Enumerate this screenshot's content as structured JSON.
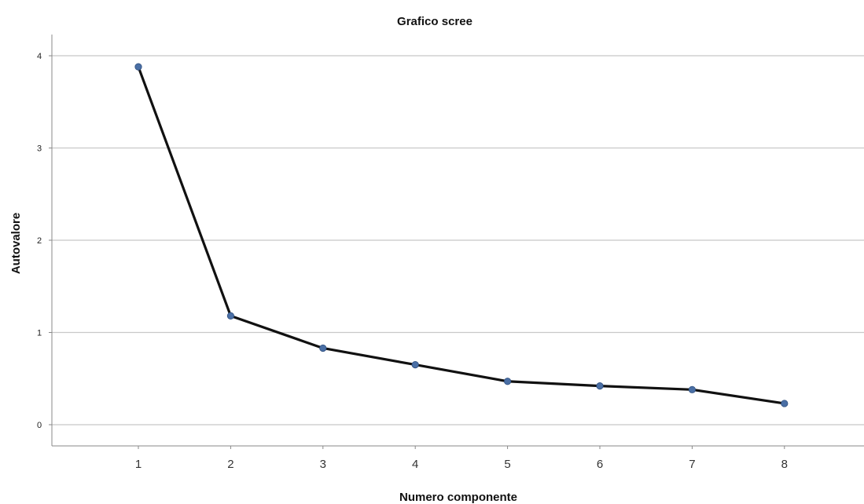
{
  "chart_data": {
    "type": "line",
    "title": "Grafico scree",
    "xlabel": "Numero componente",
    "ylabel": "Autovalore",
    "categories": [
      "1",
      "2",
      "3",
      "4",
      "5",
      "6",
      "7",
      "8"
    ],
    "series": [
      {
        "values": [
          3.88,
          1.18,
          0.83,
          0.65,
          0.47,
          0.42,
          0.38,
          0.23
        ],
        "line_color": "#111111",
        "marker_color": "#4a6fa5"
      }
    ],
    "yticks": [
      0,
      1,
      2,
      3,
      4
    ],
    "ytick_labels": [
      "0",
      "1",
      "2",
      "3",
      "4"
    ],
    "ylim": [
      -0.23,
      4.23
    ],
    "grid": true,
    "legend": "none"
  }
}
